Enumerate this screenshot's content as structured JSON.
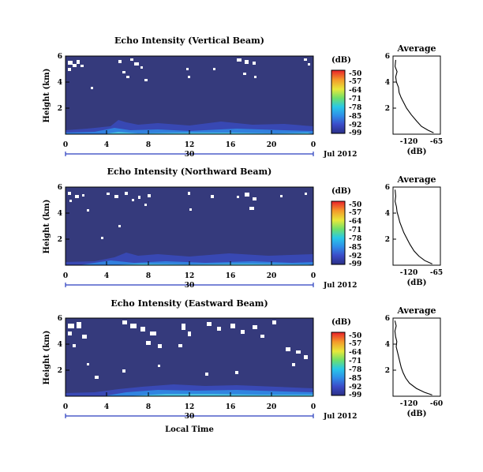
{
  "panels": [
    {
      "key": "vertical",
      "title": "Echo Intensity (Vertical Beam)",
      "ylabel": "Height (km)",
      "colorbar_title": "(dB)",
      "colorbar_ticks": [
        "-50",
        "-57",
        "-64",
        "-71",
        "-78",
        "-85",
        "-92",
        "-99"
      ],
      "avg_title": "Average",
      "avg_xlabel": "(dB)",
      "avg_xticks": [
        "-120",
        "-65"
      ],
      "avg_xlim": [
        -130,
        -60
      ],
      "avg_yticks": [
        "6",
        "4",
        "2"
      ],
      "yticks": [
        "6",
        "4",
        "2"
      ],
      "xticks": [
        "0",
        "4",
        "8",
        "12",
        "16",
        "20",
        "0"
      ],
      "date_day": "30",
      "date_label": "Jul 2012",
      "xlabel": ""
    },
    {
      "key": "northward",
      "title": "Echo Intensity (Northward Beam)",
      "ylabel": "Height (km)",
      "colorbar_title": "(dB)",
      "colorbar_ticks": [
        "-50",
        "-57",
        "-64",
        "-71",
        "-78",
        "-85",
        "-92",
        "-99"
      ],
      "avg_title": "Average",
      "avg_xlabel": "(dB)",
      "avg_xticks": [
        "-120",
        "-65"
      ],
      "avg_xlim": [
        -130,
        -60
      ],
      "avg_yticks": [
        "6",
        "4",
        "2"
      ],
      "yticks": [
        "6",
        "4",
        "2"
      ],
      "xticks": [
        "0",
        "4",
        "8",
        "12",
        "16",
        "20",
        "0"
      ],
      "date_day": "30",
      "date_label": "Jul 2012",
      "xlabel": ""
    },
    {
      "key": "eastward",
      "title": "Echo Intensity (Eastward Beam)",
      "ylabel": "Height (km)",
      "colorbar_title": "(dB)",
      "colorbar_ticks": [
        "-50",
        "-57",
        "-64",
        "-71",
        "-78",
        "-85",
        "-92",
        "-99"
      ],
      "avg_title": "Average",
      "avg_xlabel": "(dB)",
      "avg_xticks": [
        "-120",
        "-60"
      ],
      "avg_xlim": [
        -130,
        -55
      ],
      "avg_yticks": [
        "6",
        "4",
        "2"
      ],
      "yticks": [
        "6",
        "4",
        "2"
      ],
      "xticks": [
        "0",
        "4",
        "8",
        "12",
        "16",
        "20",
        "0"
      ],
      "date_day": "30",
      "date_label": "Jul 2012",
      "xlabel": "Local Time"
    }
  ],
  "chart_data": [
    {
      "type": "heatmap",
      "title": "Echo Intensity (Vertical Beam)",
      "xlabel": "",
      "ylabel": "Height (km)",
      "x_unit": "local time (h)",
      "xlim": [
        0,
        24
      ],
      "ylim": [
        0,
        6
      ],
      "colorbar_range_db": [
        -99,
        -50
      ],
      "background_db": -99,
      "near_ground_echo": [
        [
          0,
          0.15,
          -90
        ],
        [
          4,
          0.2,
          -88
        ],
        [
          5,
          0.5,
          -85
        ],
        [
          6,
          0.4,
          -83
        ],
        [
          8,
          0.5,
          -85
        ],
        [
          12,
          0.3,
          -86
        ],
        [
          16,
          0.4,
          -85
        ],
        [
          20,
          0.3,
          -87
        ],
        [
          24,
          0.2,
          -87
        ]
      ]
    },
    {
      "type": "heatmap",
      "title": "Echo Intensity (Northward Beam)",
      "xlabel": "",
      "ylabel": "Height (km)",
      "x_unit": "local time (h)",
      "xlim": [
        0,
        24
      ],
      "ylim": [
        0,
        6
      ],
      "colorbar_range_db": [
        -99,
        -50
      ],
      "background_db": -99,
      "near_ground_echo": [
        [
          0,
          0.1,
          -92
        ],
        [
          4,
          0.15,
          -90
        ],
        [
          6,
          0.3,
          -85
        ],
        [
          8,
          0.35,
          -84
        ],
        [
          12,
          0.4,
          -84
        ],
        [
          16,
          0.35,
          -85
        ],
        [
          20,
          0.3,
          -86
        ],
        [
          24,
          0.2,
          -86
        ]
      ]
    },
    {
      "type": "heatmap",
      "title": "Echo Intensity (Eastward Beam)",
      "xlabel": "Local Time",
      "ylabel": "Height (km)",
      "x_unit": "local time (h)",
      "xlim": [
        0,
        24
      ],
      "ylim": [
        0,
        6
      ],
      "colorbar_range_db": [
        -99,
        -50
      ],
      "background_db": -99,
      "near_ground_echo": [
        [
          0,
          0.1,
          -92
        ],
        [
          4,
          0.15,
          -90
        ],
        [
          6,
          0.25,
          -87
        ],
        [
          8,
          0.3,
          -85
        ],
        [
          12,
          0.35,
          -84
        ],
        [
          16,
          0.3,
          -85
        ],
        [
          20,
          0.25,
          -86
        ],
        [
          24,
          0.2,
          -87
        ]
      ]
    },
    {
      "type": "line",
      "title": "Average",
      "xlabel": "(dB)",
      "ylabel": "",
      "xlim": [
        -130,
        -60
      ],
      "ylim": [
        0,
        6
      ],
      "series": [
        {
          "x": [
            -126,
            -127,
            -124,
            -126,
            -125,
            -122,
            -121,
            -118,
            -114,
            -110,
            -103,
            -95,
            -88,
            -78,
            -70
          ],
          "y": [
            5.7,
            5.2,
            4.8,
            4.4,
            4.0,
            3.6,
            3.2,
            2.8,
            2.4,
            2.0,
            1.5,
            1.0,
            0.6,
            0.3,
            0.1
          ]
        }
      ]
    },
    {
      "type": "line",
      "title": "Average",
      "xlabel": "(dB)",
      "ylabel": "",
      "xlim": [
        -130,
        -60
      ],
      "ylim": [
        0,
        6
      ],
      "series": [
        {
          "x": [
            -127,
            -126,
            -127,
            -125,
            -124,
            -122,
            -120,
            -117,
            -114,
            -110,
            -105,
            -99,
            -92,
            -83,
            -72
          ],
          "y": [
            5.8,
            5.3,
            4.9,
            4.5,
            4.1,
            3.7,
            3.3,
            2.9,
            2.5,
            2.1,
            1.6,
            1.1,
            0.7,
            0.35,
            0.1
          ]
        }
      ]
    },
    {
      "type": "line",
      "title": "Average",
      "xlabel": "(dB)",
      "ylabel": "",
      "xlim": [
        -130,
        -55
      ],
      "ylim": [
        0,
        6
      ],
      "series": [
        {
          "x": [
            -127,
            -125,
            -127,
            -126,
            -124,
            -125,
            -123,
            -121,
            -119,
            -117,
            -114,
            -110,
            -104,
            -93,
            -80,
            -68
          ],
          "y": [
            5.8,
            5.4,
            5.0,
            4.6,
            4.2,
            3.8,
            3.4,
            3.0,
            2.6,
            2.2,
            1.8,
            1.4,
            1.0,
            0.6,
            0.3,
            0.1
          ]
        }
      ]
    }
  ]
}
